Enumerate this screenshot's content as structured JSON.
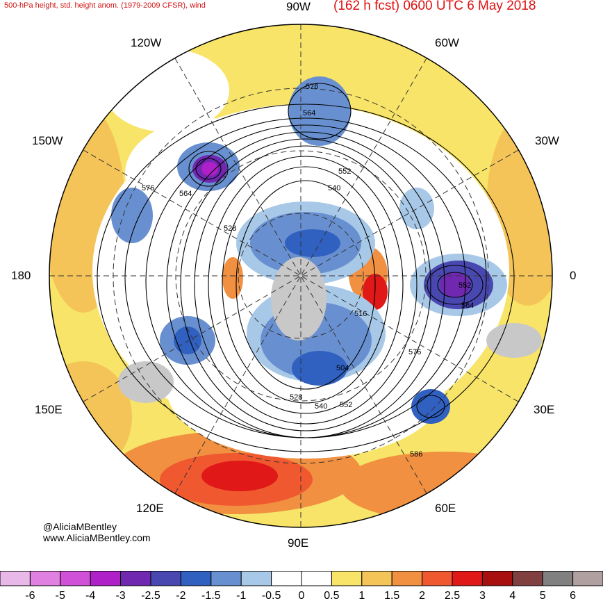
{
  "header": {
    "title_left": "500-hPa height, std. height anom. (1979-2009 CFSR), wind",
    "title_right": "(162 h fcst) 0600 UTC 6 May 2018"
  },
  "lon_labels": {
    "top": "90W",
    "left": "180",
    "right": "0",
    "bottom": "90E",
    "nw": "120W",
    "ne": "60W",
    "wnw": "150W",
    "ene": "30W",
    "wsw": "150E",
    "ese": "30E",
    "sw": "120E",
    "se": "60E"
  },
  "contour_labels": [
    "576",
    "564",
    "552",
    "540",
    "528",
    "516",
    "504",
    "552",
    "564",
    "576",
    "586",
    "576",
    "564",
    "528",
    "540",
    "552"
  ],
  "credit": {
    "handle": "@AliciaMBentley",
    "site": "www.AliciaMBentley.com"
  },
  "colorbar": {
    "ticks": [
      "-6",
      "-5",
      "-4",
      "-3",
      "-2.5",
      "-2",
      "-1.5",
      "-1",
      "-0.5",
      "0",
      "0.5",
      "1",
      "1.5",
      "2",
      "2.5",
      "3",
      "4",
      "5",
      "6"
    ],
    "colors": [
      "#e8b8e8",
      "#e080e0",
      "#d050d8",
      "#b020c8",
      "#7028b0",
      "#4848b0",
      "#3060c0",
      "#6890d0",
      "#a8c8e8",
      "#ffffff",
      "#ffffff",
      "#f8e468",
      "#f4c458",
      "#f09040",
      "#f05830",
      "#e01818",
      "#a81010",
      "#804040",
      "#808080",
      "#b0a0a0"
    ]
  }
}
